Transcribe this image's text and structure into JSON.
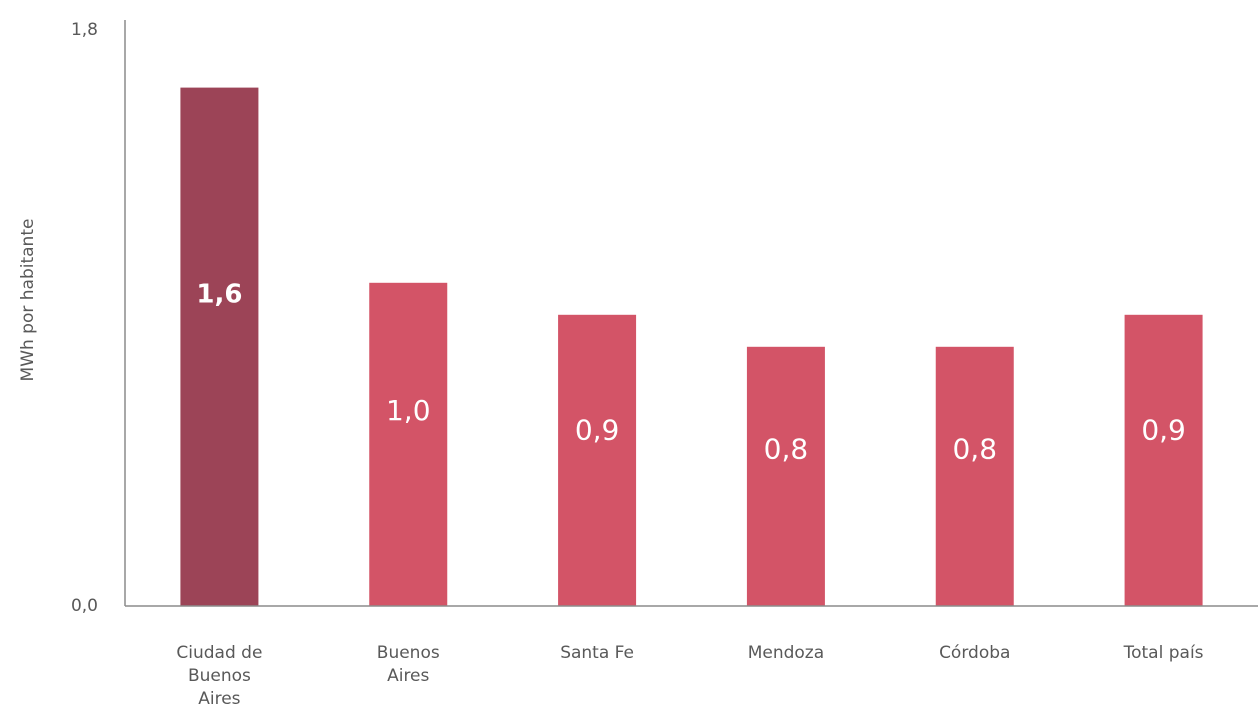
{
  "chart_data": {
    "type": "bar",
    "y_label": "MWh por habitante",
    "categories": [
      "Ciudad de Buenos Aires",
      "Buenos Aires",
      "Santa Fe",
      "Mendoza",
      "Córdoba",
      "Total país"
    ],
    "values": [
      1.62,
      1.01,
      0.91,
      0.81,
      0.81,
      0.91
    ],
    "value_labels": [
      "1,6",
      "1,0",
      "0,9",
      "0,8",
      "0,8",
      "0,9"
    ],
    "colors": [
      "#9c4457",
      "#d35467",
      "#d35467",
      "#d35467",
      "#d35467",
      "#d35467"
    ],
    "ylim": [
      0,
      1.8
    ],
    "yticks": [
      {
        "value": 0,
        "label": "0,0"
      },
      {
        "value": 1.8,
        "label": "1,8"
      }
    ],
    "grid": false
  }
}
